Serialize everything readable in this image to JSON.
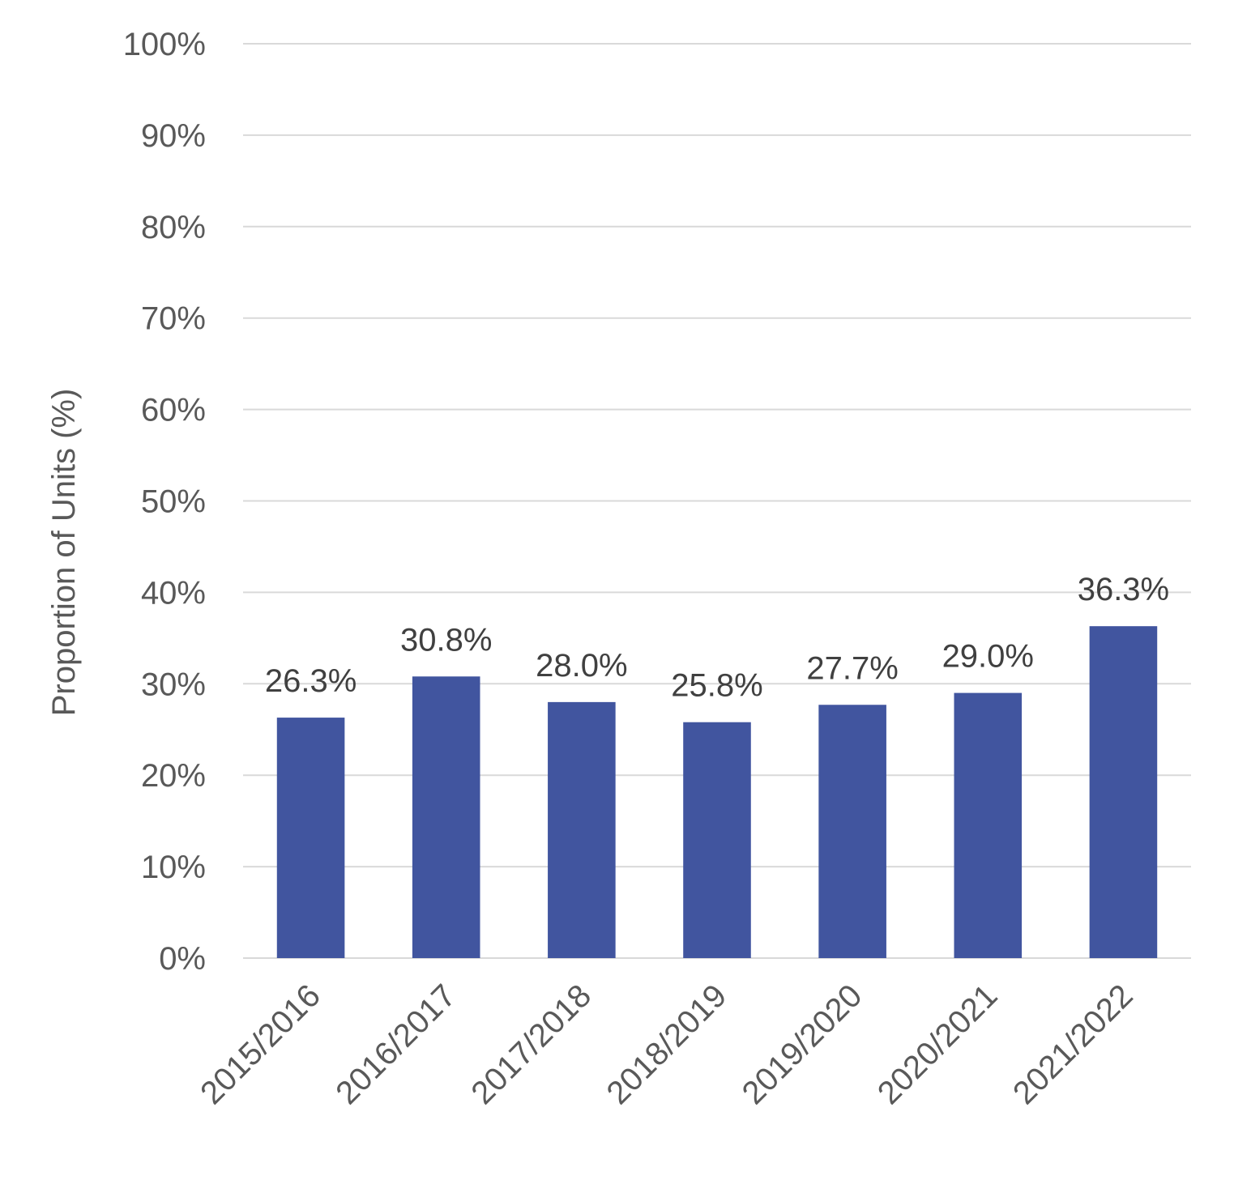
{
  "chart_data": {
    "type": "bar",
    "ylabel": "Proportion of Units (%)",
    "xlabel": "",
    "categories": [
      "2015/2016",
      "2016/2017",
      "2017/2018",
      "2018/2019",
      "2019/2020",
      "2020/2021",
      "2021/2022"
    ],
    "values": [
      26.3,
      30.8,
      28.0,
      25.8,
      27.7,
      29.0,
      36.3
    ],
    "data_labels": [
      "26.3%",
      "30.8%",
      "28.0%",
      "25.8%",
      "27.7%",
      "29.0%",
      "36.3%"
    ],
    "ylim": [
      0,
      100
    ],
    "yticks": [
      0,
      10,
      20,
      30,
      40,
      50,
      60,
      70,
      80,
      90,
      100
    ],
    "ytick_labels": [
      "0%",
      "10%",
      "20%",
      "30%",
      "40%",
      "50%",
      "60%",
      "70%",
      "80%",
      "90%",
      "100%"
    ],
    "grid": true,
    "legend": "none",
    "bar_color": "#41559f"
  }
}
